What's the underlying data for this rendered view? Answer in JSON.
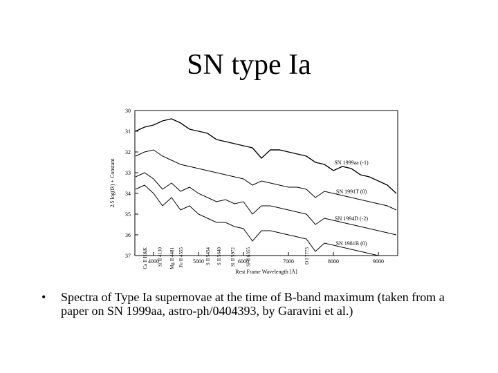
{
  "header": {
    "title": "SN type Ia"
  },
  "chart_data": {
    "type": "line",
    "xlabel": "Rest Frame Wavelength [Å]",
    "ylabel": "2.5 log(fλ) + Constant",
    "x": [
      3600,
      3800,
      4000,
      4200,
      4400,
      4600,
      4800,
      5000,
      5200,
      5400,
      5600,
      5800,
      6000,
      6200,
      6400,
      6600,
      6800,
      7000,
      7200,
      7400,
      7600,
      7800,
      8000,
      8200,
      8400,
      8600,
      8800,
      9000,
      9200,
      9400
    ],
    "xlim": [
      3585,
      9430
    ],
    "xticks": [
      4000,
      5000,
      6000,
      7000,
      8000,
      9000
    ],
    "ylim": [
      37,
      30
    ],
    "yticks": [
      30,
      31,
      32,
      33,
      34,
      35,
      36,
      37
    ],
    "series": [
      {
        "name": "SN 1999aa (-1)",
        "color": "#000000",
        "values": [
          31.0,
          30.8,
          30.7,
          30.5,
          30.4,
          30.6,
          30.9,
          31.0,
          31.1,
          31.4,
          31.5,
          31.6,
          31.7,
          31.8,
          32.3,
          31.9,
          31.9,
          32.0,
          32.1,
          32.2,
          32.5,
          32.6,
          32.9,
          32.7,
          32.8,
          33.1,
          33.2,
          33.4,
          33.6,
          34.0
        ]
      },
      {
        "name": "SN 1991T (0)",
        "color": "#000000",
        "values": [
          32.2,
          32.0,
          31.9,
          32.2,
          32.4,
          32.6,
          32.7,
          32.8,
          32.9,
          33.0,
          33.1,
          33.2,
          33.3,
          33.6,
          33.4,
          33.5,
          33.6,
          33.7,
          33.7,
          33.8,
          34.2,
          33.9,
          34.0,
          34.1,
          34.2,
          34.3,
          34.4,
          34.5,
          34.6,
          34.8
        ]
      },
      {
        "name": "SN 1994D (-2)",
        "color": "#000000",
        "values": [
          33.2,
          33.0,
          33.3,
          33.8,
          33.5,
          33.9,
          33.7,
          34.0,
          34.2,
          34.4,
          34.3,
          34.5,
          34.4,
          35.0,
          34.6,
          34.6,
          34.7,
          34.8,
          34.9,
          35.0,
          35.5,
          35.2,
          35.3,
          35.4,
          35.5,
          35.6,
          35.7,
          35.8,
          35.9,
          36.0
        ]
      },
      {
        "name": "SN 1981B (0)",
        "color": "#000000",
        "values": [
          33.8,
          33.6,
          34.0,
          34.6,
          34.2,
          34.8,
          34.6,
          35.0,
          35.2,
          35.4,
          35.4,
          35.6,
          35.7,
          36.3,
          35.8,
          35.8,
          35.9,
          36.0,
          36.1,
          36.2,
          36.8,
          36.4,
          36.5,
          36.6,
          36.7,
          36.8,
          36.9,
          37.0,
          37.0,
          37.0
        ]
      }
    ],
    "annotations": [
      {
        "text": "Ca II H&K",
        "x": 3800
      },
      {
        "text": "Si II 4130",
        "x": 4130
      },
      {
        "text": "Mg II 4481",
        "x": 4400
      },
      {
        "text": "Fe II 4555",
        "x": 4600
      },
      {
        "text": "S II 5454",
        "x": 5200
      },
      {
        "text": "S II 5640",
        "x": 5450
      },
      {
        "text": "Si II 5972",
        "x": 5750
      },
      {
        "text": "Si II 6355",
        "x": 6100
      },
      {
        "text": "O I 7773",
        "x": 7400
      }
    ]
  },
  "bullets": [
    "Spectra of Type Ia supernovae at the time of B-band maximum (taken from a paper on SN 1999aa, astro-ph/0404393, by Garavini et al.)"
  ]
}
